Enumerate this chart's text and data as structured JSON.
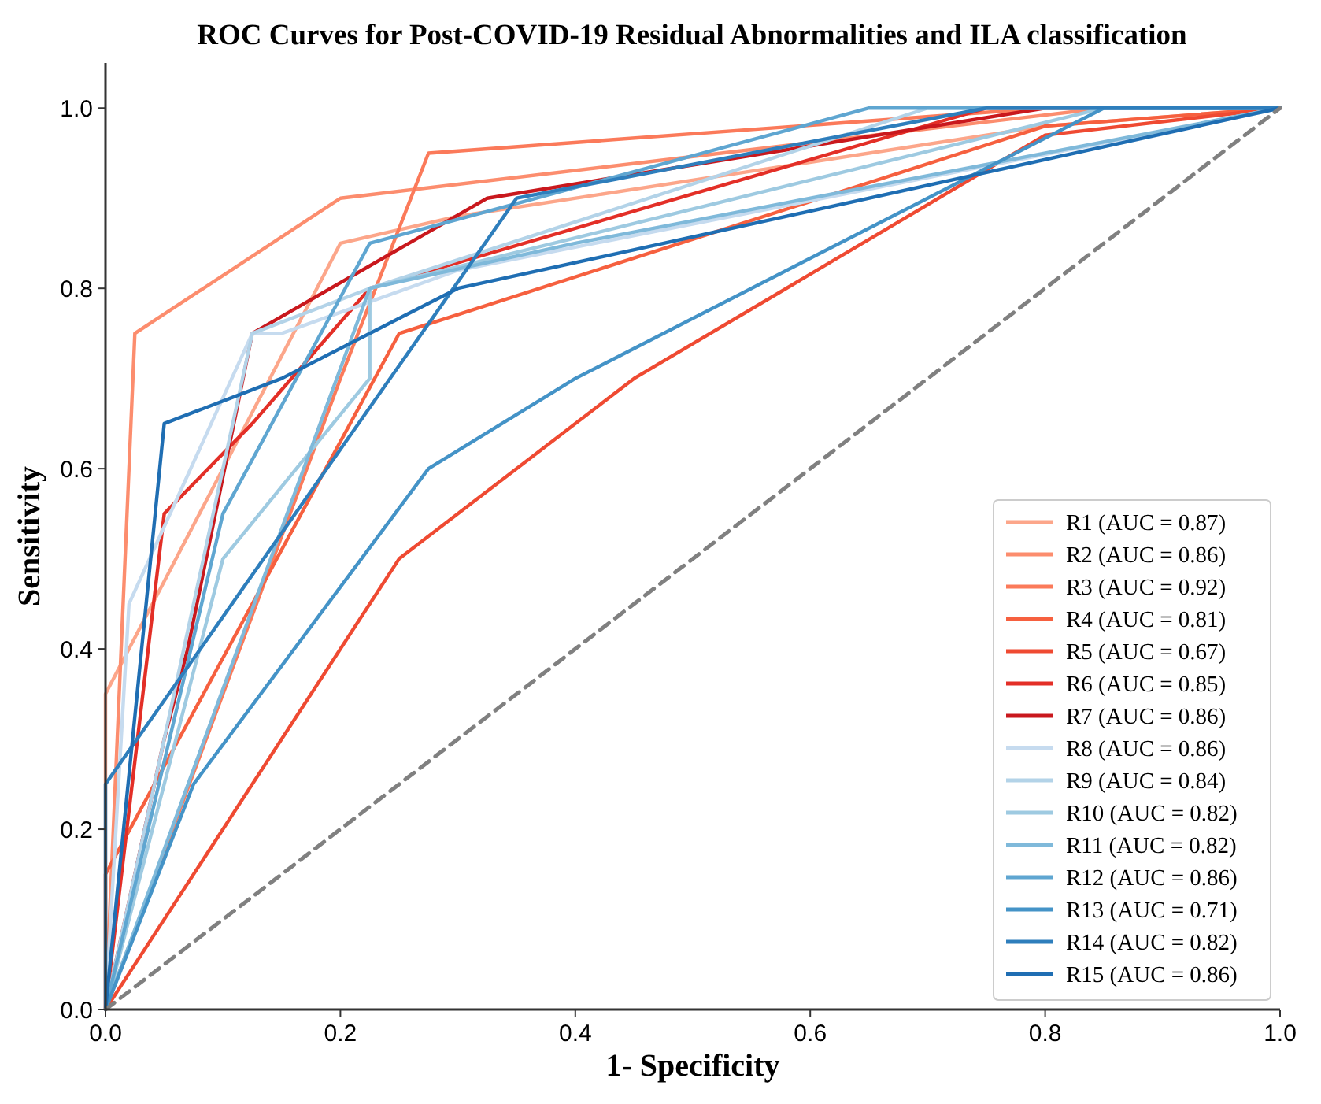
{
  "chart_data": {
    "type": "line",
    "title": "ROC Curves for Post-COVID-19 Residual Abnormalities and ILA classification",
    "xlabel": "1- Specificity",
    "ylabel": "Sensitivity",
    "xlim": [
      0,
      1
    ],
    "ylim": [
      0,
      1.05
    ],
    "xticks": [
      {
        "value": 0,
        "label": "0.0"
      },
      {
        "value": 0.2,
        "label": "0.2"
      },
      {
        "value": 0.4,
        "label": "0.4"
      },
      {
        "value": 0.6,
        "label": "0.6"
      },
      {
        "value": 0.8,
        "label": "0.8"
      },
      {
        "value": 1,
        "label": "1.0"
      }
    ],
    "yticks": [
      {
        "value": 0,
        "label": "0.0"
      },
      {
        "value": 0.2,
        "label": "0.2"
      },
      {
        "value": 0.4,
        "label": "0.4"
      },
      {
        "value": 0.6,
        "label": "0.6"
      },
      {
        "value": 0.8,
        "label": "0.8"
      },
      {
        "value": 1,
        "label": "1.0"
      }
    ],
    "grid": false,
    "legend": "bottom right",
    "marker": "none",
    "line_style": "solid",
    "series": [
      {
        "name": "R1 (AUC = 0.87)",
        "color": "#fca68a",
        "x": [
          0,
          0,
          0.2,
          0.3,
          0.8,
          1
        ],
        "values": [
          0,
          0.35,
          0.85,
          0.88,
          0.98,
          1
        ]
      },
      {
        "name": "R2 (AUC = 0.86)",
        "color": "#fc8d6e",
        "x": [
          0,
          0.025,
          0.2,
          0.85,
          1
        ],
        "values": [
          0,
          0.75,
          0.9,
          1,
          1
        ]
      },
      {
        "name": "R3 (AUC = 0.92)",
        "color": "#fb7a5a",
        "x": [
          0,
          0.2,
          0.275,
          0.8,
          1
        ],
        "values": [
          0,
          0.7,
          0.95,
          1,
          1
        ]
      },
      {
        "name": "R4 (AUC = 0.81)",
        "color": "#f6603f",
        "x": [
          0,
          0,
          0.25,
          0.8,
          1
        ],
        "values": [
          0,
          0.15,
          0.75,
          0.98,
          1
        ]
      },
      {
        "name": "R5 (AUC = 0.67)",
        "color": "#ef4a32",
        "x": [
          0,
          0.25,
          0.45,
          0.8,
          1
        ],
        "values": [
          0,
          0.5,
          0.7,
          0.97,
          1
        ]
      },
      {
        "name": "R6 (AUC = 0.85)",
        "color": "#e32f27",
        "x": [
          0,
          0.05,
          0.125,
          0.225,
          0.75,
          1
        ],
        "values": [
          0,
          0.55,
          0.65,
          0.8,
          1,
          1
        ]
      },
      {
        "name": "R7 (AUC = 0.86)",
        "color": "#c9181d",
        "x": [
          0,
          0.05,
          0.07,
          0.125,
          0.325,
          0.8,
          1
        ],
        "values": [
          0,
          0.3,
          0.4,
          0.75,
          0.9,
          1,
          1
        ]
      },
      {
        "name": "R8 (AUC = 0.86)",
        "color": "#c6dbef",
        "x": [
          0,
          0.02,
          0.125,
          0.15,
          0.3,
          1
        ],
        "values": [
          0,
          0.45,
          0.75,
          0.75,
          0.82,
          1
        ]
      },
      {
        "name": "R9 (AUC = 0.84)",
        "color": "#b3d3e8",
        "x": [
          0,
          0.05,
          0.125,
          0.225,
          0.7,
          1
        ],
        "values": [
          0,
          0.3,
          0.75,
          0.8,
          1,
          1
        ]
      },
      {
        "name": "R10 (AUC = 0.82)",
        "color": "#9ecae1",
        "x": [
          0,
          0.1,
          0.225,
          0.225,
          0.85,
          1
        ],
        "values": [
          0,
          0.5,
          0.7,
          0.8,
          1,
          1
        ]
      },
      {
        "name": "R11 (AUC = 0.82)",
        "color": "#7fb9da",
        "x": [
          0,
          0.225,
          0.4,
          1
        ],
        "values": [
          0,
          0.8,
          0.85,
          1
        ]
      },
      {
        "name": "R12 (AUC = 0.86)",
        "color": "#5fa6d1",
        "x": [
          0,
          0.1,
          0.225,
          0.65,
          1
        ],
        "values": [
          0,
          0.55,
          0.85,
          1,
          1
        ]
      },
      {
        "name": "R13 (AUC = 0.71)",
        "color": "#4493c7",
        "x": [
          0,
          0.075,
          0.275,
          0.4,
          0.85,
          1
        ],
        "values": [
          0,
          0.25,
          0.6,
          0.7,
          1,
          1
        ]
      },
      {
        "name": "R14 (AUC = 0.82)",
        "color": "#2e7ebc",
        "x": [
          0,
          0,
          0.35,
          0.75,
          1
        ],
        "values": [
          0,
          0.25,
          0.9,
          1,
          1
        ]
      },
      {
        "name": "R15 (AUC = 0.86)",
        "color": "#1f6eb3",
        "x": [
          0,
          0.05,
          0.15,
          0.3,
          1
        ],
        "values": [
          0,
          0.65,
          0.7,
          0.8,
          1
        ]
      },
      {
        "color": "#808080",
        "line_style": "dashed",
        "x": [
          0,
          1
        ],
        "values": [
          0,
          1
        ]
      }
    ]
  }
}
